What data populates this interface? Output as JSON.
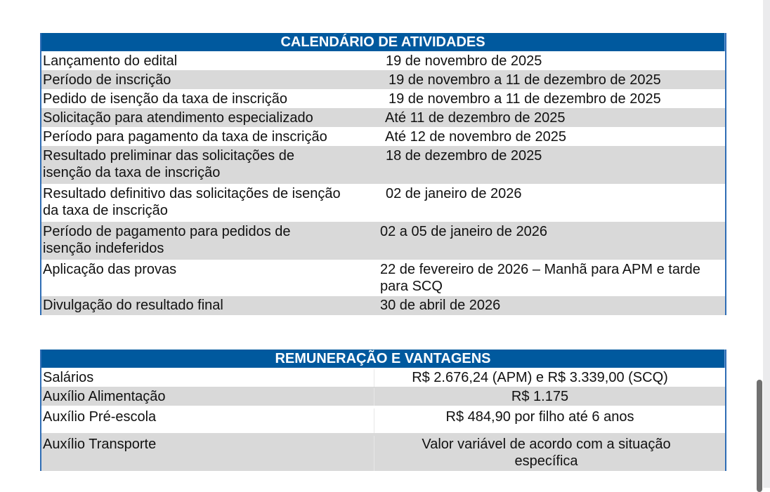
{
  "calendar": {
    "title": "CALENDÁRIO DE ATIVIDADES",
    "rows": [
      {
        "activity": "Lançamento do edital",
        "date": "19 de novembro de 2025"
      },
      {
        "activity": "Período de inscrição",
        "date": "19 de novembro a 11 de dezembro de 2025"
      },
      {
        "activity": "Pedido de isenção da taxa de inscrição",
        "date": "19 de novembro a 11 de dezembro de 2025"
      },
      {
        "activity": "Solicitação para atendimento especializado",
        "date": "Até 11 de dezembro de 2025"
      },
      {
        "activity": "Período para pagamento da taxa de inscrição",
        "date": "Até 12 de novembro de 2025"
      },
      {
        "activity": "Resultado preliminar das solicitações de isenção da taxa de inscrição",
        "date": "18 de dezembro de 2025"
      },
      {
        "activity": "Resultado definitivo das solicitações de isenção da taxa de inscrição",
        "date": "02 de janeiro de 2026"
      },
      {
        "activity": "Período de pagamento para pedidos de isenção indeferidos",
        "date": "02 a 05 de janeiro de 2026"
      },
      {
        "activity": "Aplicação das provas",
        "date": "22 de fevereiro de 2026 – Manhã para APM e tarde para SCQ"
      },
      {
        "activity": "Divulgação do resultado final",
        "date": "30 de abril de 2026"
      }
    ]
  },
  "remuneration": {
    "title": "REMUNERAÇÃO E VANTAGENS",
    "rows": [
      {
        "item": "Salários",
        "value": "R$ 2.676,24 (APM) e R$ 3.339,00 (SCQ)"
      },
      {
        "item": "Auxílio Alimentação",
        "value": "R$ 1.175"
      },
      {
        "item": "Auxílio Pré-escola",
        "value": "R$ 484,90 por filho até 6 anos"
      },
      {
        "item": "Auxílio Transporte",
        "value": "Valor variável de acordo com a situação específica"
      }
    ]
  },
  "colors": {
    "header": "#00599e",
    "stripe": "#d9d9d9",
    "border": "#2f6db5"
  }
}
